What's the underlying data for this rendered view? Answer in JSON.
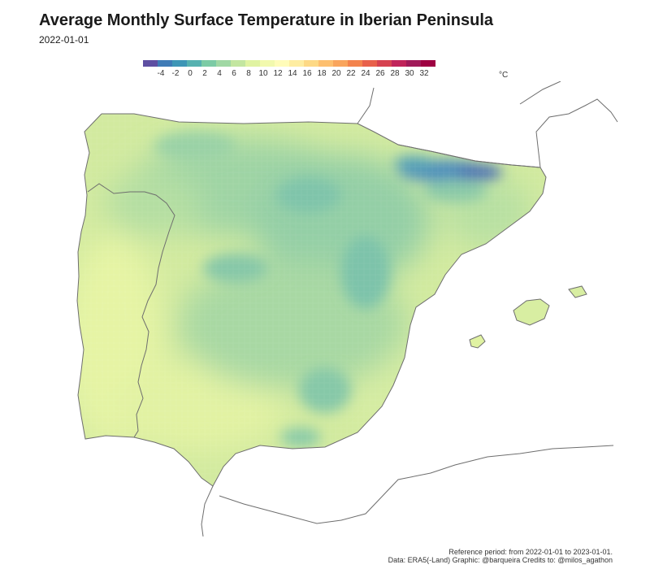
{
  "title": "Average Monthly Surface Temperature in Iberian Peninsula",
  "subtitle": "2022-01-01",
  "legend": {
    "unit": "°C",
    "ticks": [
      "-4",
      "-2",
      "0",
      "2",
      "4",
      "6",
      "8",
      "10",
      "12",
      "14",
      "16",
      "18",
      "20",
      "22",
      "24",
      "26",
      "28",
      "30",
      "32"
    ],
    "colors": [
      "#5e4fa2",
      "#3f7bb6",
      "#3e96b6",
      "#56b1b0",
      "#7ccba5",
      "#a0d8a4",
      "#c3e6a0",
      "#e0f3a2",
      "#f2f9ae",
      "#fffcb9",
      "#feeda1",
      "#fdd985",
      "#fdbf6f",
      "#f9a55d",
      "#f3834d",
      "#e8614b",
      "#d64250",
      "#c0245a",
      "#a01a59",
      "#9e0142"
    ]
  },
  "caption": {
    "line1": "Reference period: from 2022-01-01 to 2023-01-01.",
    "line2": "Data: ERA5(-Land) Graphic: @barqueira Credits to: @milos_agathon"
  }
}
